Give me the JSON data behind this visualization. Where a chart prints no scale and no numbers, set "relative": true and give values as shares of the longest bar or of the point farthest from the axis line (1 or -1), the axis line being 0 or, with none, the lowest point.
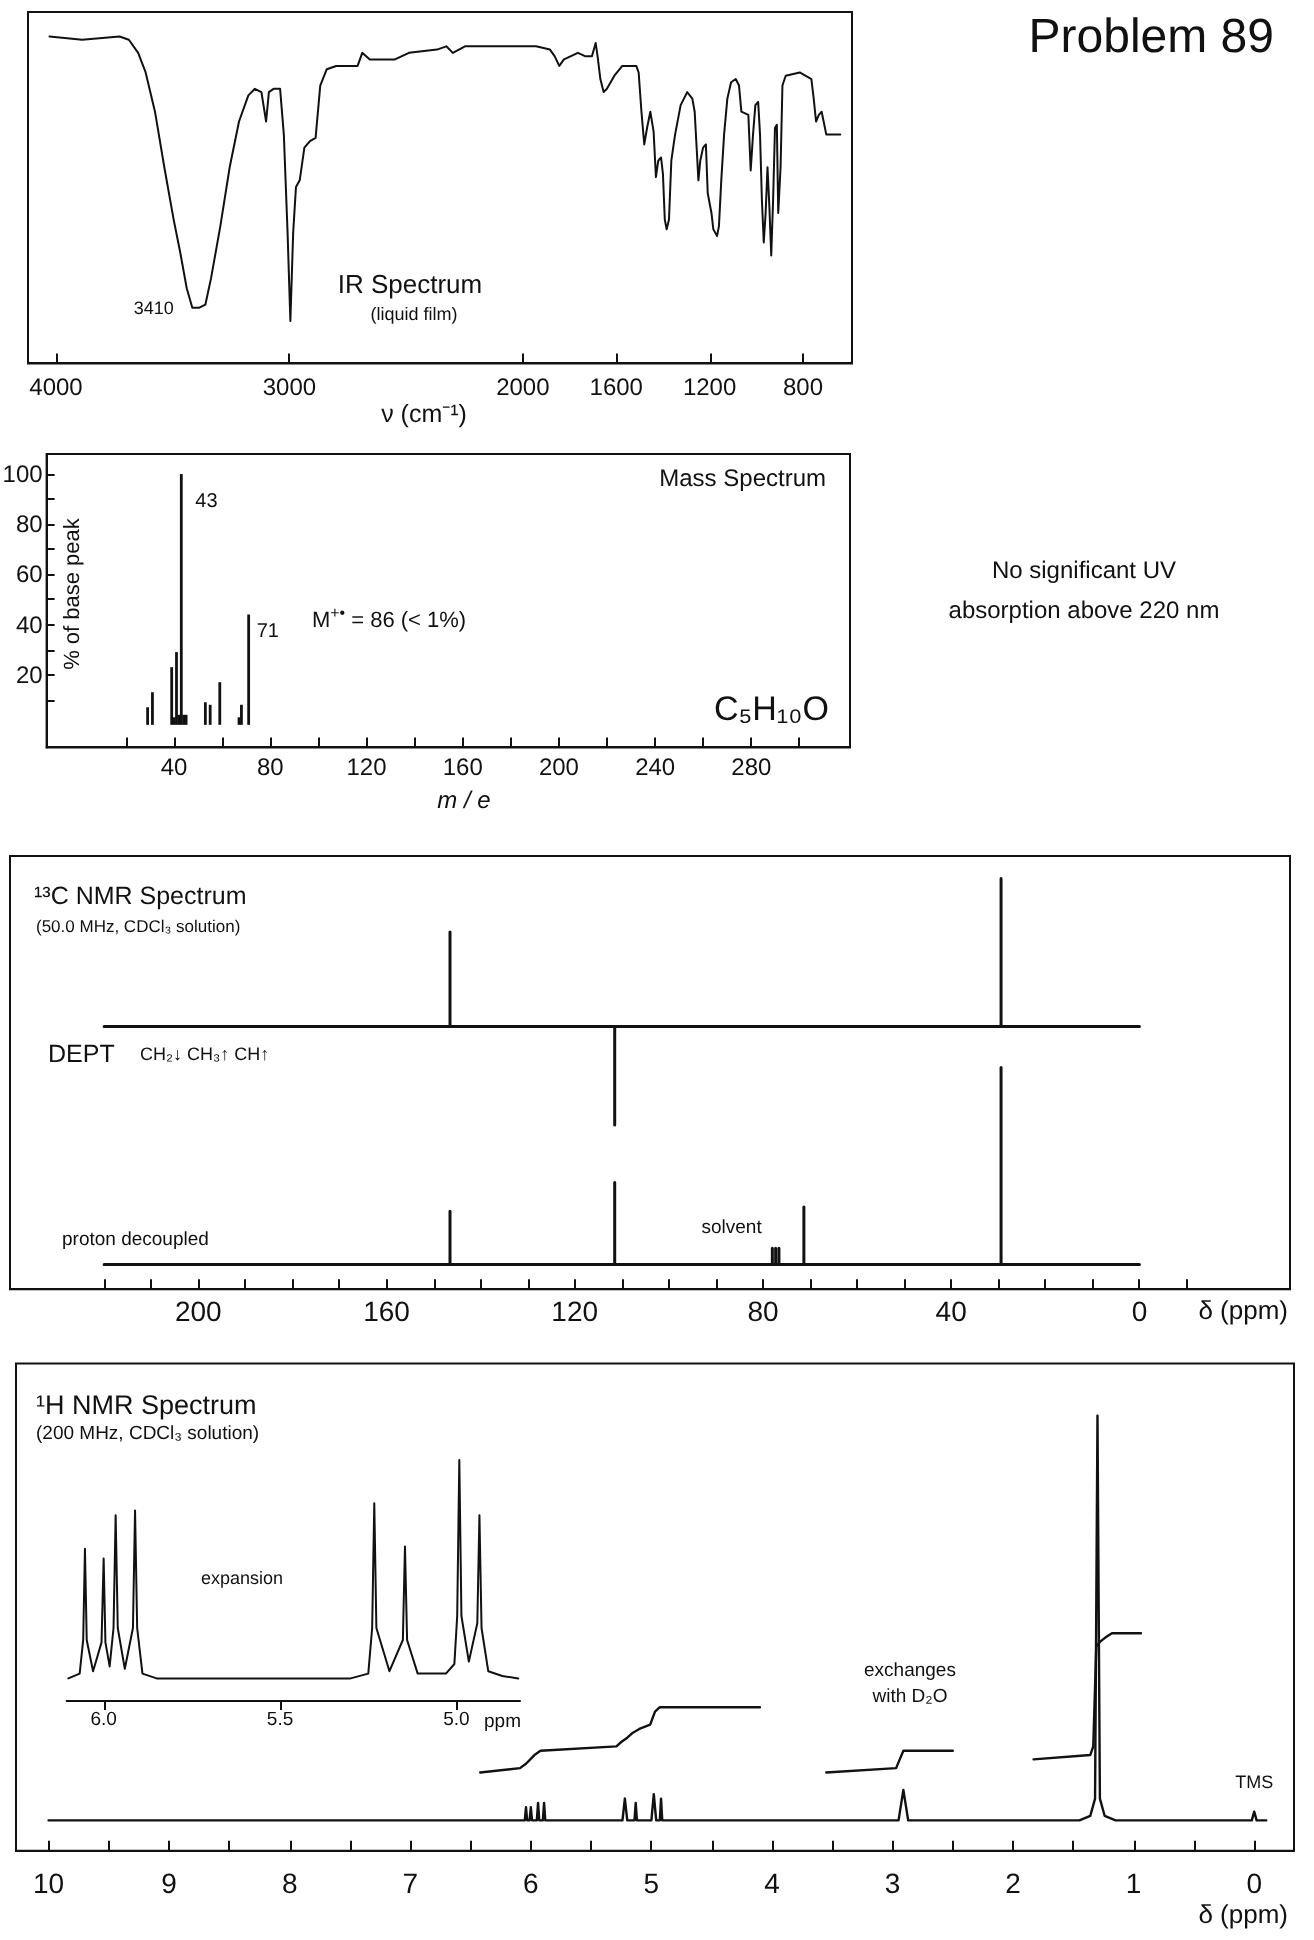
{
  "chart_data": [
    {
      "type": "line",
      "title": "IR Spectrum",
      "subtitle": "(liquid film)",
      "xlabel": "ν (cm⁻¹)",
      "annotations": [
        "Problem 89",
        {
          "text": "3410",
          "x": 3410,
          "y": 0.17
        }
      ],
      "relative": true,
      "color": "#111111",
      "xlim": [
        4120,
        590
      ],
      "xticks": [
        4000,
        3000,
        2000,
        1600,
        1200,
        800
      ],
      "x": [
        4028,
        3888,
        3728,
        3688,
        3648,
        3616,
        3576,
        3536,
        3496,
        3468,
        3440,
        3416,
        3388,
        3360,
        3336,
        3296,
        3256,
        3216,
        3176,
        3148,
        3120,
        3100,
        3088,
        3068,
        3040,
        3024,
        3008,
        2996,
        2984,
        2972,
        2956,
        2936,
        2912,
        2888,
        2868,
        2840,
        2800,
        2708,
        2688,
        2656,
        2548,
        2488,
        2368,
        2328,
        2300,
        2248,
        2168,
        2048,
        1944,
        1884,
        1864,
        1844,
        1824,
        1764,
        1734,
        1704,
        1688,
        1680,
        1668,
        1654,
        1640,
        1608,
        1574,
        1514,
        1504,
        1492,
        1480,
        1468,
        1454,
        1440,
        1430,
        1420,
        1408,
        1400,
        1392,
        1384,
        1374,
        1364,
        1348,
        1324,
        1296,
        1274,
        1264,
        1254,
        1248,
        1240,
        1228,
        1216,
        1208,
        1200,
        1192,
        1184,
        1168,
        1160,
        1150,
        1138,
        1124,
        1108,
        1088,
        1074,
        1064,
        1034,
        1024,
        1014,
        1004,
        992,
        984,
        976,
        968,
        960,
        952,
        944,
        936,
        928,
        920,
        912,
        906,
        896,
        888,
        874,
        814,
        764,
        754,
        744,
        732,
        720,
        700,
        674,
        640
      ],
      "values": [
        1.0,
        0.99,
        1.0,
        0.99,
        0.95,
        0.89,
        0.77,
        0.6,
        0.44,
        0.34,
        0.23,
        0.17,
        0.17,
        0.18,
        0.26,
        0.42,
        0.6,
        0.74,
        0.82,
        0.84,
        0.83,
        0.74,
        0.83,
        0.84,
        0.84,
        0.7,
        0.4,
        0.13,
        0.4,
        0.54,
        0.56,
        0.66,
        0.68,
        0.69,
        0.85,
        0.9,
        0.91,
        0.91,
        0.95,
        0.93,
        0.93,
        0.95,
        0.96,
        0.97,
        0.95,
        0.97,
        0.97,
        0.97,
        0.97,
        0.96,
        0.94,
        0.91,
        0.93,
        0.95,
        0.94,
        0.94,
        0.98,
        0.94,
        0.87,
        0.83,
        0.84,
        0.88,
        0.91,
        0.91,
        0.89,
        0.77,
        0.67,
        0.72,
        0.77,
        0.71,
        0.57,
        0.62,
        0.63,
        0.58,
        0.44,
        0.41,
        0.44,
        0.62,
        0.7,
        0.79,
        0.83,
        0.81,
        0.77,
        0.64,
        0.56,
        0.62,
        0.66,
        0.67,
        0.52,
        0.49,
        0.46,
        0.41,
        0.39,
        0.42,
        0.56,
        0.7,
        0.81,
        0.86,
        0.87,
        0.85,
        0.77,
        0.76,
        0.59,
        0.7,
        0.79,
        0.8,
        0.7,
        0.5,
        0.37,
        0.46,
        0.6,
        0.48,
        0.33,
        0.5,
        0.72,
        0.73,
        0.46,
        0.6,
        0.85,
        0.88,
        0.89,
        0.87,
        0.81,
        0.74,
        0.76,
        0.77,
        0.7,
        0.7,
        0.7
      ]
    },
    {
      "type": "bar",
      "title": "Mass Spectrum",
      "xlabel": "m / e",
      "ylabel": "% of base peak",
      "annotations": [
        {
          "text": "43",
          "x": 43,
          "y": 100
        },
        {
          "text": "71",
          "x": 71,
          "y": 44
        },
        "M$^{+•}$ = 86 (< 1%)",
        "C₅H₁₀O",
        "No significant UV absorption above 220 nm"
      ],
      "color": "#111111",
      "xlim": [
        -13,
        321
      ],
      "ylim": [
        -9,
        108
      ],
      "xticks": [
        {
          "value": 20,
          "label": null
        },
        40,
        {
          "value": 60,
          "label": null
        },
        80,
        {
          "value": 100,
          "label": null
        },
        120,
        {
          "value": 140,
          "label": null
        },
        160,
        {
          "value": 180,
          "label": null
        },
        200,
        {
          "value": 220,
          "label": null
        },
        240,
        {
          "value": 260,
          "label": null
        },
        280,
        {
          "value": 300,
          "label": null
        }
      ],
      "yticks": [
        {
          "value": 10,
          "label": null
        },
        20,
        {
          "value": 30,
          "label": null
        },
        40,
        {
          "value": 50,
          "label": null
        },
        60,
        {
          "value": 70,
          "label": null
        },
        80,
        {
          "value": 90,
          "label": null
        },
        100
      ],
      "x": [
        29,
        31,
        39,
        40,
        41,
        42,
        43,
        44,
        45,
        53,
        55,
        59,
        67,
        68,
        71
      ],
      "values": [
        7,
        13,
        23,
        3,
        29,
        4,
        100,
        4,
        4,
        9,
        8,
        17,
        3,
        8,
        44
      ]
    },
    {
      "type": "line",
      "title": "¹³C NMR Spectrum",
      "subtitle": "(50.0 MHz, CDCl₃ solution)",
      "xlabel": "δ (ppm)",
      "annotations": [
        "CH₂↓ CH₃↑ CH↑",
        {
          "text": "solvent",
          "x": 77.3,
          "y": 0.1
        }
      ],
      "relative": true,
      "xlim": [
        240,
        -32
      ],
      "xticks": [
        {
          "value": 220,
          "label": null
        },
        {
          "value": 210,
          "label": null
        },
        200,
        {
          "value": 190,
          "label": null
        },
        {
          "value": 180,
          "label": null
        },
        {
          "value": 170,
          "label": null
        },
        160,
        {
          "value": 150,
          "label": null
        },
        {
          "value": 140,
          "label": null
        },
        {
          "value": 130,
          "label": null
        },
        120,
        {
          "value": 110,
          "label": null
        },
        {
          "value": 100,
          "label": null
        },
        {
          "value": 90,
          "label": null
        },
        80,
        {
          "value": 70,
          "label": null
        },
        {
          "value": 60,
          "label": null
        },
        {
          "value": 50,
          "label": null
        },
        40,
        {
          "value": 30,
          "label": null
        },
        {
          "value": 20,
          "label": null
        },
        {
          "value": 10,
          "label": null
        },
        0,
        {
          "value": -10,
          "label": null
        }
      ],
      "series": [
        {
          "name": "DEPT",
          "color": "#111111",
          "x": [
            220,
            146.5,
            146.5,
            146.5,
            111.5,
            111.5,
            111.5,
            29.4,
            29.4,
            29.4,
            0
          ],
          "values": [
            0.64,
            0.64,
            0.87,
            0.64,
            0.64,
            0.4,
            0.64,
            0.64,
            1,
            0.64,
            0.64
          ]
        },
        {
          "name": "proton decoupled",
          "color": "#111111",
          "x": [
            220,
            146.5,
            146.5,
            146.5,
            111.5,
            111.5,
            111.5,
            78,
            78,
            78,
            77.3,
            77.3,
            77.3,
            76.6,
            76.6,
            76.6,
            71.3,
            71.3,
            71.3,
            29.4,
            29.4,
            29.4,
            0
          ],
          "values": [
            0.06,
            0.06,
            0.19,
            0.06,
            0.06,
            0.26,
            0.06,
            0.06,
            0.1,
            0.06,
            0.06,
            0.1,
            0.06,
            0.06,
            0.1,
            0.06,
            0.06,
            0.2,
            0.06,
            0.06,
            0.54,
            0.06,
            0.06
          ]
        }
      ]
    },
    {
      "type": "line",
      "title": "¹H NMR Spectrum",
      "subtitle": "(200 MHz, CDCl₃ solution)",
      "xlabel": "δ (ppm)",
      "annotations": [
        "exchanges with D₂O",
        {
          "text": "TMS",
          "x": 0,
          "y": 0.09
        }
      ],
      "relative": true,
      "xlim": [
        10.27,
        -0.33
      ],
      "xticks": [
        10,
        {
          "value": 9.5,
          "label": null
        },
        9,
        {
          "value": 8.5,
          "label": null
        },
        8,
        {
          "value": 7.5,
          "label": null
        },
        7,
        {
          "value": 6.5,
          "label": null
        },
        6,
        {
          "value": 5.5,
          "label": null
        },
        5,
        {
          "value": 4.5,
          "label": null
        },
        4,
        {
          "value": 3.5,
          "label": null
        },
        3,
        {
          "value": 2.5,
          "label": null
        },
        2,
        {
          "value": 1.5,
          "label": null
        },
        1,
        {
          "value": 0.5,
          "label": null
        },
        0
      ],
      "series": [
        {
          "color": "#111111",
          "x": [
            10,
            6.1,
            6.05,
            6.04,
            6.03,
            6.01,
            6,
            5.99,
            5.95,
            5.94,
            5.93,
            5.9,
            5.89,
            5.88,
            5.24,
            5.22,
            5.2,
            5.14,
            5.13,
            5.12,
            5,
            4.98,
            4.96,
            4.93,
            4.92,
            4.91,
            2.95,
            2.91,
            2.87,
            1.45,
            1.36,
            1.32,
            1.3,
            1.28,
            1.24,
            1.15,
            0.02,
            0,
            -0.02,
            -0.1
          ],
          "values": [
            0.07,
            0.07,
            0.07,
            0.1,
            0.07,
            0.07,
            0.1,
            0.07,
            0.07,
            0.11,
            0.07,
            0.07,
            0.11,
            0.07,
            0.07,
            0.12,
            0.07,
            0.07,
            0.11,
            0.07,
            0.07,
            0.13,
            0.07,
            0.07,
            0.12,
            0.07,
            0.07,
            0.14,
            0.07,
            0.07,
            0.08,
            0.12,
            1,
            0.12,
            0.08,
            0.07,
            0.07,
            0.09,
            0.07,
            0.07
          ]
        },
        {
          "color": "#111111",
          "x": [
            6.42,
            6.09,
            6.04,
            5.97,
            5.92,
            5.29,
            5.25,
            5.2,
            5.16,
            5.1,
            5.01,
            4.97,
            4.93,
            4.1
          ],
          "values": [
            0.18,
            0.19,
            0.2,
            0.22,
            0.23,
            0.24,
            0.25,
            0.26,
            0.27,
            0.28,
            0.29,
            0.32,
            0.33,
            0.33
          ]
        },
        {
          "color": "#111111",
          "x": [
            3.55,
            2.97,
            2.94,
            2.91,
            2.5
          ],
          "values": [
            0.18,
            0.19,
            0.21,
            0.23,
            0.23
          ]
        },
        {
          "color": "#111111",
          "x": [
            1.83,
            1.36,
            1.335,
            1.31,
            1.28,
            1.235,
            1.18,
            0.94
          ],
          "values": [
            0.21,
            0.22,
            0.24,
            0.47,
            0.48,
            0.49,
            0.5,
            0.5
          ]
        }
      ]
    },
    {
      "type": "line",
      "xlabel": "ppm",
      "annotations": [
        "expansion"
      ],
      "relative": true,
      "color": "#111111",
      "xlim": [
        6.105,
        4.82
      ],
      "xticks": [
        {
          "value": 6,
          "label": "6.0"
        },
        {
          "value": 5.5,
          "label": "5.5"
        },
        {
          "value": 5,
          "label": "5.0"
        }
      ],
      "x": [
        6.1,
        6.068,
        6.058,
        6.053,
        6.048,
        6.03,
        6.006,
        6.0,
        5.995,
        5.983,
        5.972,
        5.966,
        5.96,
        5.94,
        5.917,
        5.911,
        5.905,
        5.89,
        5.85,
        5.3,
        5.25,
        5.239,
        5.233,
        5.227,
        5.19,
        5.152,
        5.146,
        5.14,
        5.11,
        5.03,
        5.006,
        4.998,
        4.992,
        4.986,
        4.965,
        4.941,
        4.935,
        4.929,
        4.91,
        4.87,
        4.825
      ],
      "values": [
        0.09,
        0.11,
        0.25,
        0.63,
        0.25,
        0.12,
        0.24,
        0.59,
        0.24,
        0.14,
        0.3,
        0.77,
        0.3,
        0.13,
        0.3,
        0.79,
        0.3,
        0.11,
        0.09,
        0.09,
        0.11,
        0.3,
        0.82,
        0.3,
        0.12,
        0.25,
        0.64,
        0.25,
        0.11,
        0.11,
        0.15,
        0.35,
        1,
        0.35,
        0.16,
        0.32,
        0.77,
        0.3,
        0.12,
        0.1,
        0.09
      ]
    }
  ]
}
